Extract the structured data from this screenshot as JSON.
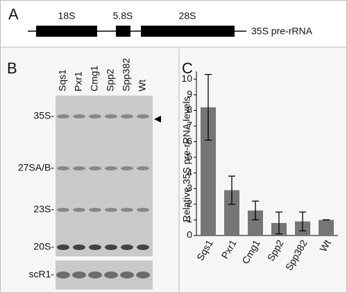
{
  "panel_a": {
    "label": "A",
    "segments": [
      "18S",
      "5.8S",
      "28S"
    ],
    "caption": "35S pre-rRNA"
  },
  "panel_b": {
    "label": "B",
    "lanes": [
      "Sqs1",
      "Pxr1",
      "Cmg1",
      "Spp2",
      "Spp382",
      "Wt"
    ],
    "bands": [
      "35S-",
      "27SA/B-",
      "23S-",
      "20S-"
    ],
    "loading_control": "scR1-"
  },
  "chart_data": {
    "type": "bar",
    "panel_label": "C",
    "y_label": "Relative 35S pre-rRNA levels",
    "categories": [
      "Sqs1",
      "Pxr1",
      "Cmg1",
      "Spp2",
      "Spp382",
      "Wt"
    ],
    "values": [
      8.2,
      2.9,
      1.6,
      0.8,
      0.9,
      1.0
    ],
    "errors": [
      2.1,
      0.9,
      0.6,
      0.7,
      0.6,
      0
    ],
    "color": "#767676",
    "ylim": [
      0,
      10.5
    ],
    "yticks": [
      0,
      1,
      2,
      3,
      4,
      5,
      6,
      7,
      8,
      9,
      10
    ]
  }
}
